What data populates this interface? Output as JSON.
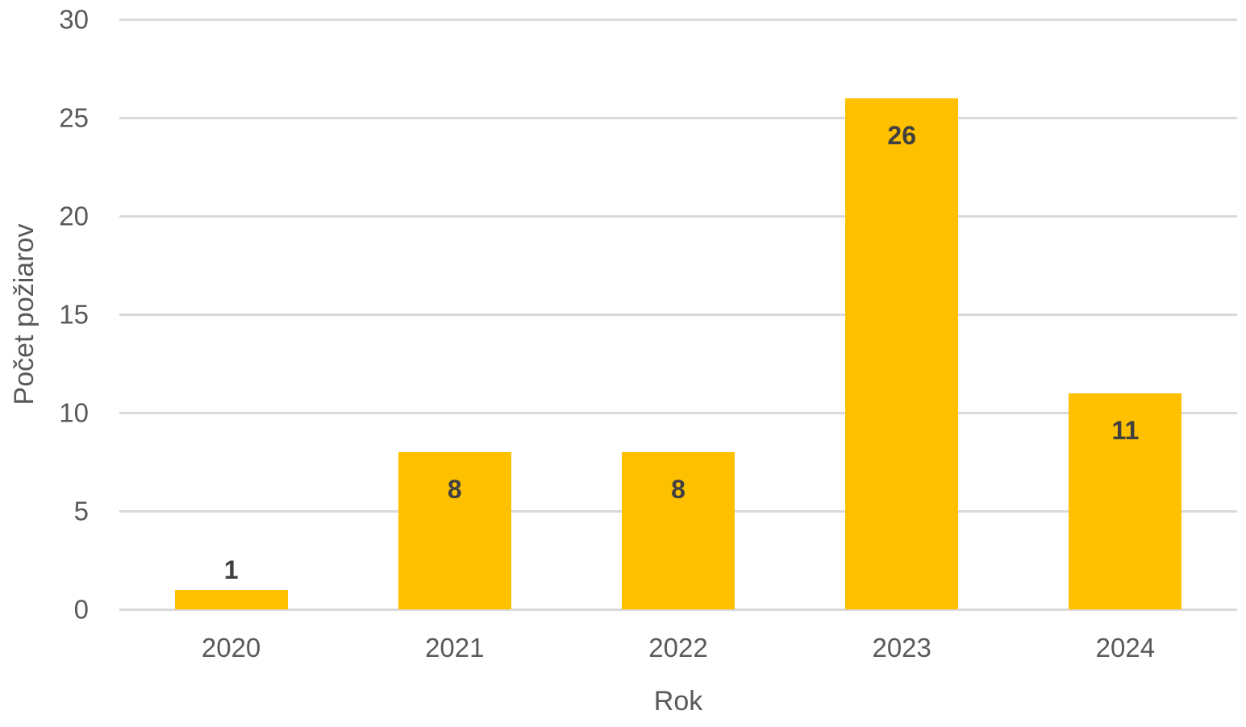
{
  "chart_data": {
    "type": "bar",
    "title": "",
    "categories": [
      "2020",
      "2021",
      "2022",
      "2023",
      "2024"
    ],
    "values": [
      1,
      8,
      8,
      26,
      11
    ],
    "data_labels": [
      "1",
      "8",
      "8",
      "26",
      "11"
    ],
    "xlabel": "Rok",
    "ylabel": "Počet požiarov",
    "ylim": [
      0,
      30
    ],
    "yticks": [
      0,
      5,
      10,
      15,
      20,
      25,
      30
    ],
    "grid": true,
    "legend": "none",
    "colors": {
      "bar": "#FFC000",
      "data_label": "#404040",
      "axis_text": "#595959",
      "gridline": "#D9D9D9"
    }
  }
}
